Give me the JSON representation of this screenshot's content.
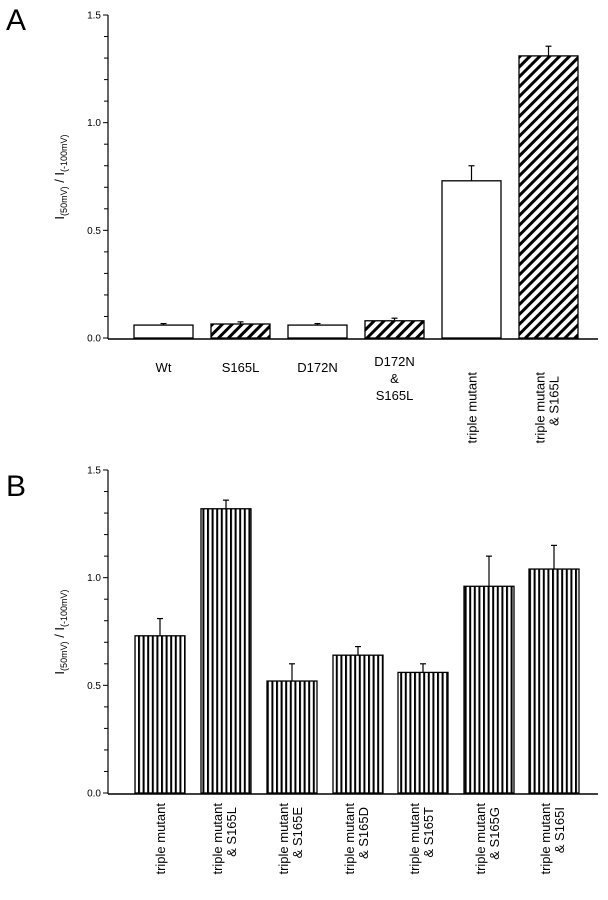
{
  "chart_data": [
    {
      "panel": "A",
      "type": "bar",
      "ylabel": "I(50mV) / I(-100mV)",
      "ylabel_parts": {
        "main1": "I",
        "sub1": "(50mV)",
        "sep": " / ",
        "main2": "I",
        "sub2": "(-100mV)"
      },
      "ylim": [
        0,
        1.5
      ],
      "yticks": [
        0.0,
        0.5,
        1.0,
        1.5
      ],
      "ytick_labels": [
        "0.0",
        "0.5",
        "1.0",
        "1.5"
      ],
      "minor_tick_step": 0.1,
      "grid": false,
      "categories": [
        "Wt",
        "S165L",
        "D172N",
        "D172N & S165L",
        "triple mutant",
        "triple mutant & S165L"
      ],
      "category_label_lines": [
        [
          "Wt"
        ],
        [
          "S165L"
        ],
        [
          "D172N"
        ],
        [
          "D172N",
          "&",
          "S165L"
        ],
        [
          "triple mutant"
        ],
        [
          "triple mutant",
          "& S165L"
        ]
      ],
      "category_label_rotated": [
        false,
        false,
        false,
        false,
        true,
        true
      ],
      "values": [
        0.06,
        0.065,
        0.06,
        0.08,
        0.73,
        1.31
      ],
      "errors": [
        0.007,
        0.01,
        0.007,
        0.012,
        0.07,
        0.045
      ],
      "fill_patterns": [
        "open",
        "diagonal",
        "open",
        "diagonal",
        "open",
        "diagonal"
      ]
    },
    {
      "panel": "B",
      "type": "bar",
      "ylabel": "I(50mV) / I(-100mV)",
      "ylabel_parts": {
        "main1": "I",
        "sub1": "(50mV)",
        "sep": " / ",
        "main2": "I",
        "sub2": "(-100mV)"
      },
      "ylim": [
        0,
        1.5
      ],
      "yticks": [
        0.0,
        0.5,
        1.0,
        1.5
      ],
      "ytick_labels": [
        "0.0",
        "0.5",
        "1.0",
        "1.5"
      ],
      "minor_tick_step": 0.1,
      "grid": false,
      "categories": [
        "triple mutant",
        "triple mutant & S165L",
        "triple mutant & S165E",
        "triple mutant & S165D",
        "triple mutant & S165T",
        "triple mutant & S165G",
        "triple mutant & S165I"
      ],
      "category_label_lines": [
        [
          "triple mutant"
        ],
        [
          "triple mutant",
          "& S165L"
        ],
        [
          "triple mutant",
          "& S165E"
        ],
        [
          "triple mutant",
          "& S165D"
        ],
        [
          "triple mutant",
          "& S165T"
        ],
        [
          "triple mutant",
          "& S165G"
        ],
        [
          "triple mutant",
          "& S165I"
        ]
      ],
      "category_label_rotated": [
        true,
        true,
        true,
        true,
        true,
        true,
        true
      ],
      "values": [
        0.73,
        1.32,
        0.52,
        0.64,
        0.56,
        0.96,
        1.04
      ],
      "errors": [
        0.08,
        0.04,
        0.08,
        0.04,
        0.04,
        0.14,
        0.11
      ],
      "fill_patterns": [
        "vertical",
        "vertical",
        "vertical",
        "vertical",
        "vertical",
        "vertical",
        "vertical"
      ]
    }
  ],
  "panels": [
    {
      "letter": "A"
    },
    {
      "letter": "B"
    }
  ]
}
